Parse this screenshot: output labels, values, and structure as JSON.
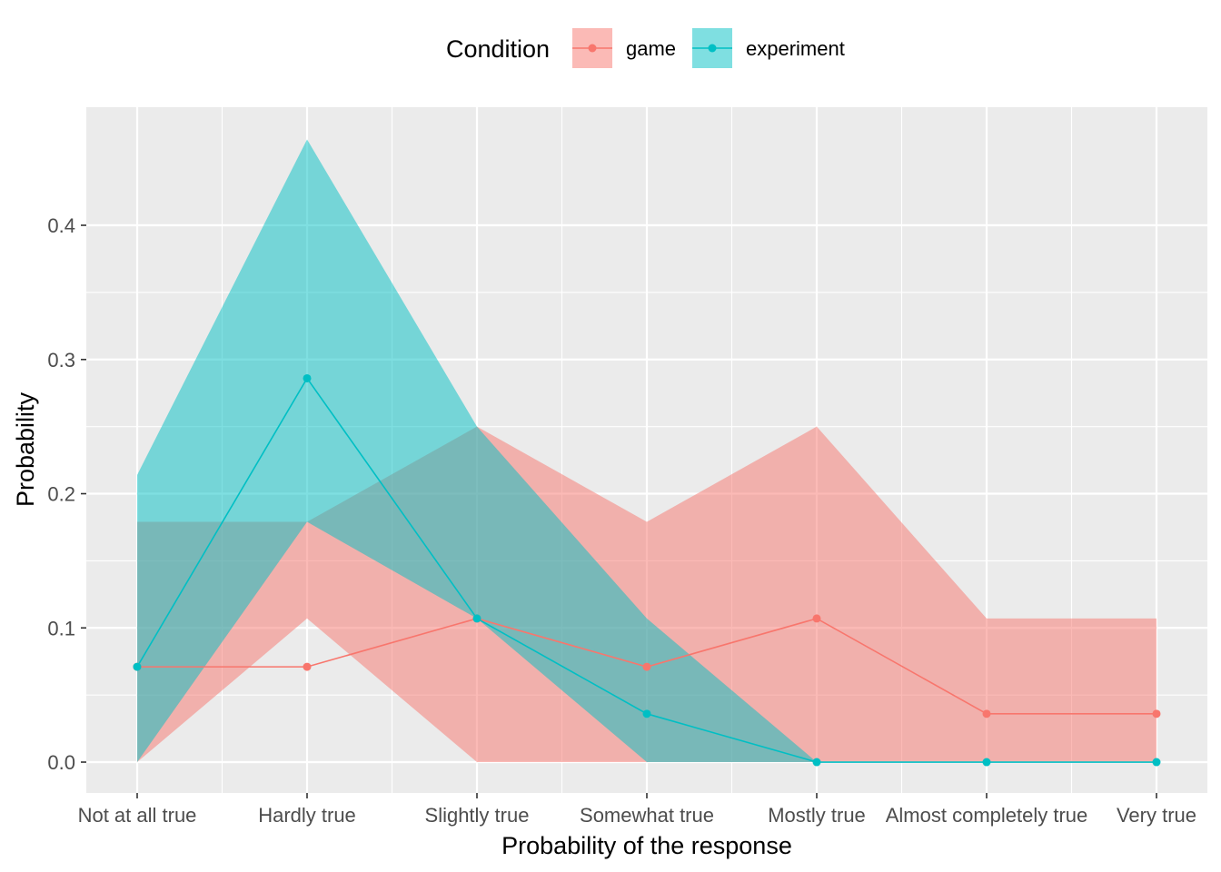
{
  "chart_data": {
    "type": "line",
    "categories": [
      "Not at all true",
      "Hardly true",
      "Slightly true",
      "Somewhat true",
      "Mostly true",
      "Almost completely true",
      "Very true"
    ],
    "xlabel": "Probability of the response",
    "ylabel": "Probability",
    "ylim": [
      -0.023,
      0.488
    ],
    "y_ticks": [
      "0.0",
      "0.1",
      "0.2",
      "0.3",
      "0.4"
    ],
    "y_tick_values": [
      0.0,
      0.1,
      0.2,
      0.3,
      0.4
    ],
    "grid": true,
    "legend": {
      "title": "Condition",
      "position": "top"
    },
    "series": [
      {
        "name": "game",
        "color": "#F8766D",
        "values": [
          0.071,
          0.071,
          0.107,
          0.071,
          0.107,
          0.036,
          0.036
        ],
        "lower": [
          0.0,
          0.107,
          0.0,
          0.0,
          0.0,
          0.0,
          0.0
        ],
        "upper": [
          0.179,
          0.179,
          0.25,
          0.179,
          0.25,
          0.107,
          0.107
        ]
      },
      {
        "name": "experiment",
        "color": "#00BFC4",
        "values": [
          0.071,
          0.286,
          0.107,
          0.036,
          0.0,
          0.0,
          0.0
        ],
        "lower": [
          0.0,
          0.179,
          0.107,
          0.0,
          0.0,
          0.0,
          0.0
        ],
        "upper": [
          0.214,
          0.464,
          0.25,
          0.107,
          0.0,
          0.0,
          0.0
        ]
      }
    ]
  }
}
